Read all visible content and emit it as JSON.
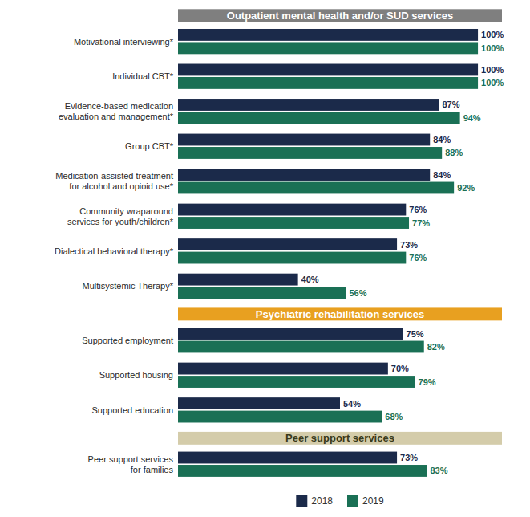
{
  "chart_data": {
    "type": "bar",
    "orientation": "horizontal",
    "data_labels": true,
    "tick_labels": false,
    "grid": false,
    "legend": "bottom",
    "xlim": [
      0,
      108
    ],
    "series": [
      {
        "name": "2018",
        "color": "#1b2a4a"
      },
      {
        "name": "2019",
        "color": "#1a7055"
      }
    ],
    "sections": [
      {
        "title": "Outpatient mental health and/or SUD services",
        "color": "#7f7f7f",
        "categories": [
          "Motivational interviewing*",
          "Individual CBT*",
          "Evidence-based medication\nevaluation and management*",
          "Group CBT*",
          "Medication-assisted treatment\nfor alcohol and opioid use*",
          "Community wraparound\nservices for youth/children*",
          "Dialectical behavioral therapy*",
          "Multisystemic Therapy*"
        ],
        "series": [
          {
            "values": [
              100,
              100,
              87,
              84,
              84,
              76,
              73,
              40
            ],
            "value_labels": [
              "100%",
              "100%",
              "87%",
              "84%",
              "84%",
              "76%",
              "73%",
              "40%"
            ]
          },
          {
            "values": [
              100,
              100,
              94,
              88,
              92,
              77,
              76,
              56
            ],
            "value_labels": [
              "100%",
              "100%",
              "94%",
              "88%",
              "92%",
              "77%",
              "76%",
              "56%"
            ]
          }
        ]
      },
      {
        "title": "Psychiatric rehabilitation services",
        "color": "#e8a020",
        "categories": [
          "Supported employment",
          "Supported housing",
          "Supported education"
        ],
        "series": [
          {
            "values": [
              75,
              70,
              54
            ],
            "value_labels": [
              "75%",
              "70%",
              "54%"
            ]
          },
          {
            "values": [
              82,
              79,
              68
            ],
            "value_labels": [
              "82%",
              "79%",
              "68%"
            ]
          }
        ]
      },
      {
        "title": "Peer support services",
        "color": "#d4ccaa",
        "categories": [
          "Peer support services\nfor families"
        ],
        "series": [
          {
            "values": [
              73
            ],
            "value_labels": [
              "73%"
            ]
          },
          {
            "values": [
              83
            ],
            "value_labels": [
              "83%"
            ]
          }
        ]
      }
    ]
  }
}
